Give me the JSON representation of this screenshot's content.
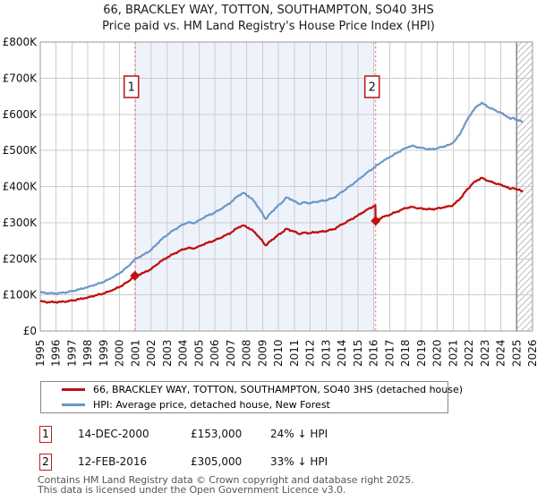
{
  "page": {
    "title": "66, BRACKLEY WAY, TOTTON, SOUTHAMPTON, SO40 3HS",
    "subtitle": "Price paid vs. HM Land Registry's House Price Index (HPI)"
  },
  "colors": {
    "property_line": "#c01010",
    "hpi_line": "#6d96c9",
    "shaded_region": "#eef3fb",
    "gridline": "#cccccc",
    "plot_border": "#999999",
    "dashed_sale_line": "#f88080",
    "marker_box_border": "#bb2020",
    "hatch_line": "#bbbbbb",
    "footer_text": "#575757"
  },
  "chart_data": {
    "type": "line",
    "title": "66, BRACKLEY WAY, TOTTON, SOUTHAMPTON, SO40 3HS — Price paid vs. HPI",
    "unit": "GBP, values stored in thousands (£K)",
    "grid": true,
    "legend_position": "bottom",
    "x_axis": {
      "range": [
        1995,
        2026
      ],
      "tick_labels": [
        "1995",
        "1996",
        "1997",
        "1998",
        "1999",
        "2000",
        "2001",
        "2002",
        "2003",
        "2004",
        "2005",
        "2006",
        "2007",
        "2008",
        "2009",
        "2010",
        "2011",
        "2012",
        "2013",
        "2014",
        "2015",
        "2016",
        "2017",
        "2018",
        "2019",
        "2020",
        "2021",
        "2022",
        "2023",
        "2024",
        "2025",
        "2026"
      ]
    },
    "y_axis": {
      "range_k": [
        0,
        800
      ],
      "tick_step_k": 100,
      "tick_labels": [
        "£0",
        "£100K",
        "£200K",
        "£300K",
        "£400K",
        "£500K",
        "£600K",
        "£700K",
        "£800K"
      ]
    },
    "series": [
      {
        "name": "66, BRACKLEY WAY, TOTTON, SOUTHAMPTON, SO40 3HS (detached house)",
        "color": "#c01010",
        "width": 2.3,
        "points_year_valueK": [
          [
            1995.0,
            82
          ],
          [
            1995.5,
            80
          ],
          [
            1996.0,
            80
          ],
          [
            1996.5,
            81
          ],
          [
            1997.0,
            84
          ],
          [
            1997.5,
            89
          ],
          [
            1998.0,
            93
          ],
          [
            1998.5,
            99
          ],
          [
            1999.0,
            104
          ],
          [
            1999.5,
            112
          ],
          [
            2000.0,
            122
          ],
          [
            2000.5,
            136
          ],
          [
            2000.96,
            153
          ],
          [
            2001.5,
            161
          ],
          [
            2002.0,
            172
          ],
          [
            2002.5,
            190
          ],
          [
            2003.0,
            204
          ],
          [
            2003.5,
            216
          ],
          [
            2004.0,
            226
          ],
          [
            2004.3,
            230
          ],
          [
            2004.7,
            228
          ],
          [
            2005.0,
            235
          ],
          [
            2005.5,
            244
          ],
          [
            2006.0,
            251
          ],
          [
            2006.5,
            261
          ],
          [
            2007.0,
            272
          ],
          [
            2007.5,
            288
          ],
          [
            2007.8,
            292
          ],
          [
            2008.1,
            286
          ],
          [
            2008.5,
            274
          ],
          [
            2008.8,
            259
          ],
          [
            2009.2,
            237
          ],
          [
            2009.5,
            249
          ],
          [
            2009.8,
            260
          ],
          [
            2010.2,
            272
          ],
          [
            2010.5,
            283
          ],
          [
            2010.8,
            278
          ],
          [
            2011.0,
            275
          ],
          [
            2011.3,
            269
          ],
          [
            2011.6,
            272
          ],
          [
            2012.0,
            271
          ],
          [
            2012.4,
            274
          ],
          [
            2012.7,
            275
          ],
          [
            2013.0,
            277
          ],
          [
            2013.5,
            282
          ],
          [
            2014.0,
            295
          ],
          [
            2014.5,
            307
          ],
          [
            2015.0,
            320
          ],
          [
            2015.5,
            334
          ],
          [
            2016.1,
            348
          ],
          [
            2016.12,
            305
          ],
          [
            2016.5,
            314
          ],
          [
            2017.0,
            322
          ],
          [
            2017.5,
            331
          ],
          [
            2018.0,
            340
          ],
          [
            2018.4,
            344
          ],
          [
            2018.8,
            340
          ],
          [
            2019.2,
            338
          ],
          [
            2019.6,
            337
          ],
          [
            2020.0,
            339
          ],
          [
            2020.4,
            342
          ],
          [
            2020.8,
            346
          ],
          [
            2021.0,
            349
          ],
          [
            2021.4,
            364
          ],
          [
            2021.8,
            387
          ],
          [
            2022.2,
            407
          ],
          [
            2022.5,
            417
          ],
          [
            2022.8,
            424
          ],
          [
            2023.0,
            420
          ],
          [
            2023.3,
            414
          ],
          [
            2023.6,
            410
          ],
          [
            2024.0,
            405
          ],
          [
            2024.3,
            400
          ],
          [
            2024.6,
            393
          ],
          [
            2024.8,
            396
          ],
          [
            2025.0,
            392
          ],
          [
            2025.4,
            387
          ]
        ]
      },
      {
        "name": "HPI: Average price, detached house, New Forest",
        "color": "#6d96c9",
        "width": 2.2,
        "points_year_valueK": [
          [
            1995.0,
            107
          ],
          [
            1995.5,
            105
          ],
          [
            1996.0,
            104
          ],
          [
            1996.5,
            106
          ],
          [
            1997.0,
            110
          ],
          [
            1997.5,
            116
          ],
          [
            1998.0,
            122
          ],
          [
            1998.5,
            129
          ],
          [
            1999.0,
            136
          ],
          [
            1999.5,
            147
          ],
          [
            2000.0,
            160
          ],
          [
            2000.5,
            178
          ],
          [
            2001.0,
            200
          ],
          [
            2001.5,
            211
          ],
          [
            2002.0,
            225
          ],
          [
            2002.5,
            248
          ],
          [
            2003.0,
            267
          ],
          [
            2003.5,
            282
          ],
          [
            2004.0,
            295
          ],
          [
            2004.3,
            301
          ],
          [
            2004.7,
            298
          ],
          [
            2005.0,
            307
          ],
          [
            2005.5,
            319
          ],
          [
            2006.0,
            328
          ],
          [
            2006.5,
            341
          ],
          [
            2007.0,
            356
          ],
          [
            2007.5,
            376
          ],
          [
            2007.8,
            382
          ],
          [
            2008.1,
            374
          ],
          [
            2008.5,
            358
          ],
          [
            2008.8,
            338
          ],
          [
            2009.2,
            310
          ],
          [
            2009.5,
            326
          ],
          [
            2009.8,
            340
          ],
          [
            2010.2,
            355
          ],
          [
            2010.5,
            370
          ],
          [
            2010.8,
            364
          ],
          [
            2011.0,
            359
          ],
          [
            2011.3,
            352
          ],
          [
            2011.6,
            356
          ],
          [
            2012.0,
            354
          ],
          [
            2012.4,
            358
          ],
          [
            2012.7,
            360
          ],
          [
            2013.0,
            362
          ],
          [
            2013.5,
            369
          ],
          [
            2014.0,
            385
          ],
          [
            2014.5,
            401
          ],
          [
            2015.0,
            418
          ],
          [
            2015.5,
            436
          ],
          [
            2016.1,
            455
          ],
          [
            2016.5,
            468
          ],
          [
            2017.0,
            481
          ],
          [
            2017.5,
            494
          ],
          [
            2018.0,
            507
          ],
          [
            2018.4,
            513
          ],
          [
            2018.8,
            508
          ],
          [
            2019.2,
            505
          ],
          [
            2019.6,
            503
          ],
          [
            2020.0,
            506
          ],
          [
            2020.4,
            511
          ],
          [
            2020.8,
            516
          ],
          [
            2021.0,
            521
          ],
          [
            2021.4,
            543
          ],
          [
            2021.8,
            578
          ],
          [
            2022.2,
            607
          ],
          [
            2022.5,
            622
          ],
          [
            2022.8,
            632
          ],
          [
            2023.0,
            626
          ],
          [
            2023.3,
            618
          ],
          [
            2023.6,
            612
          ],
          [
            2024.0,
            604
          ],
          [
            2024.3,
            597
          ],
          [
            2024.6,
            587
          ],
          [
            2024.8,
            591
          ],
          [
            2025.0,
            585
          ],
          [
            2025.4,
            578
          ]
        ]
      }
    ],
    "sale_markers": [
      {
        "label": "1",
        "year": 2000.96,
        "value_k": 153
      },
      {
        "label": "2",
        "year": 2016.12,
        "value_k": 305
      }
    ],
    "shaded_region_years": [
      2000.96,
      2016.12
    ],
    "hatched_future_years": [
      2025.0,
      2026.0
    ]
  },
  "legend": {
    "items": [
      {
        "label": "66, BRACKLEY WAY, TOTTON, SOUTHAMPTON, SO40 3HS (detached house)",
        "color": "#c01010"
      },
      {
        "label": "HPI: Average price, detached house, New Forest",
        "color": "#6d96c9"
      }
    ]
  },
  "annotations": [
    {
      "num": "1",
      "date": "14-DEC-2000",
      "price": "£153,000",
      "hpi_delta": "24% ↓ HPI"
    },
    {
      "num": "2",
      "date": "12-FEB-2016",
      "price": "£305,000",
      "hpi_delta": "33% ↓ HPI"
    }
  ],
  "footer": {
    "line1": "Contains HM Land Registry data © Crown copyright and database right 2025.",
    "line2": "This data is licensed under the Open Government Licence v3.0."
  }
}
